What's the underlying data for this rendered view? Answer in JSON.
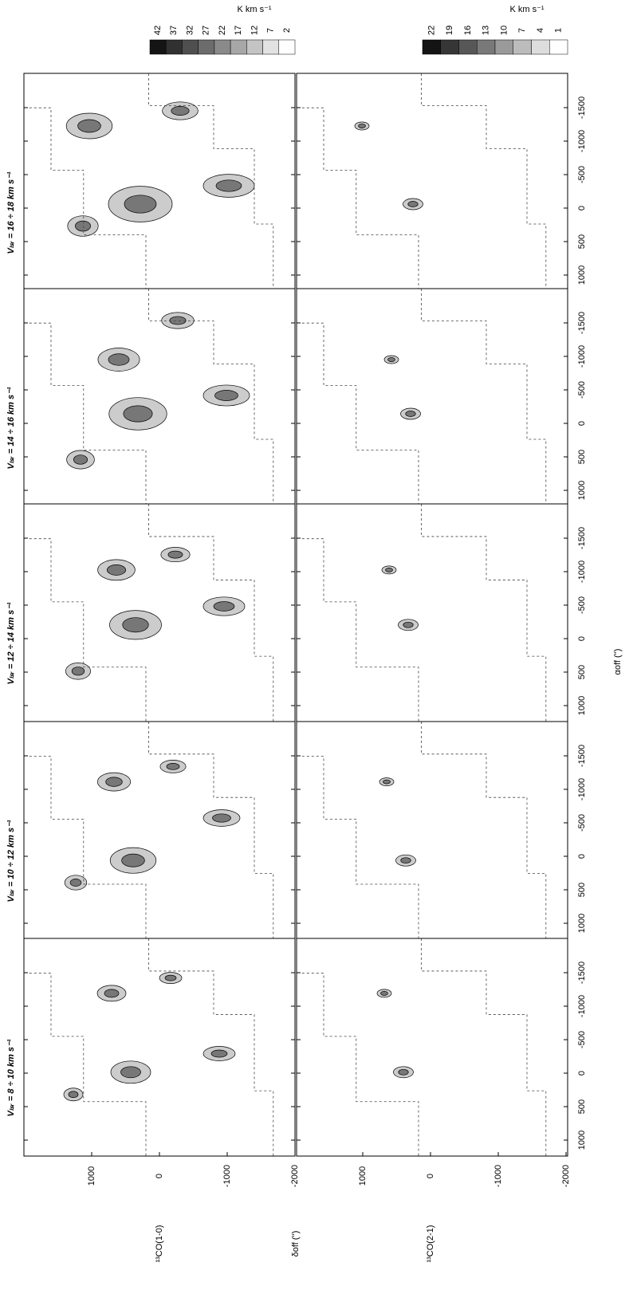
{
  "colorbars": [
    {
      "unit": "K km s⁻¹",
      "ticks": [
        42,
        37,
        32,
        27,
        22,
        17,
        12,
        7,
        2
      ]
    },
    {
      "unit": "K km s⁻¹",
      "ticks": [
        22,
        19,
        16,
        13,
        10,
        7,
        4,
        1
      ]
    }
  ],
  "panels": [
    "Vₗₛᵣ = 16 ÷ 18 km s⁻¹",
    "Vₗₛᵣ = 14 ÷ 16 km s⁻¹",
    "Vₗₛᵣ = 12 ÷ 14 km s⁻¹",
    "Vₗₛᵣ = 10 ÷ 12 km s⁻¹",
    "Vₗₛᵣ = 8 ÷ 10 km s⁻¹"
  ],
  "columns": [
    "¹³CO(1-0)",
    "¹³CO(2-1)"
  ],
  "delta_axis": {
    "title": "δoff ('')",
    "ticks": [
      1000,
      0,
      -1000,
      -2000
    ]
  },
  "alpha_axis": {
    "title": "αoff ('')",
    "ticks": [
      1000,
      500,
      0,
      -500,
      -1000,
      -1500
    ]
  }
}
